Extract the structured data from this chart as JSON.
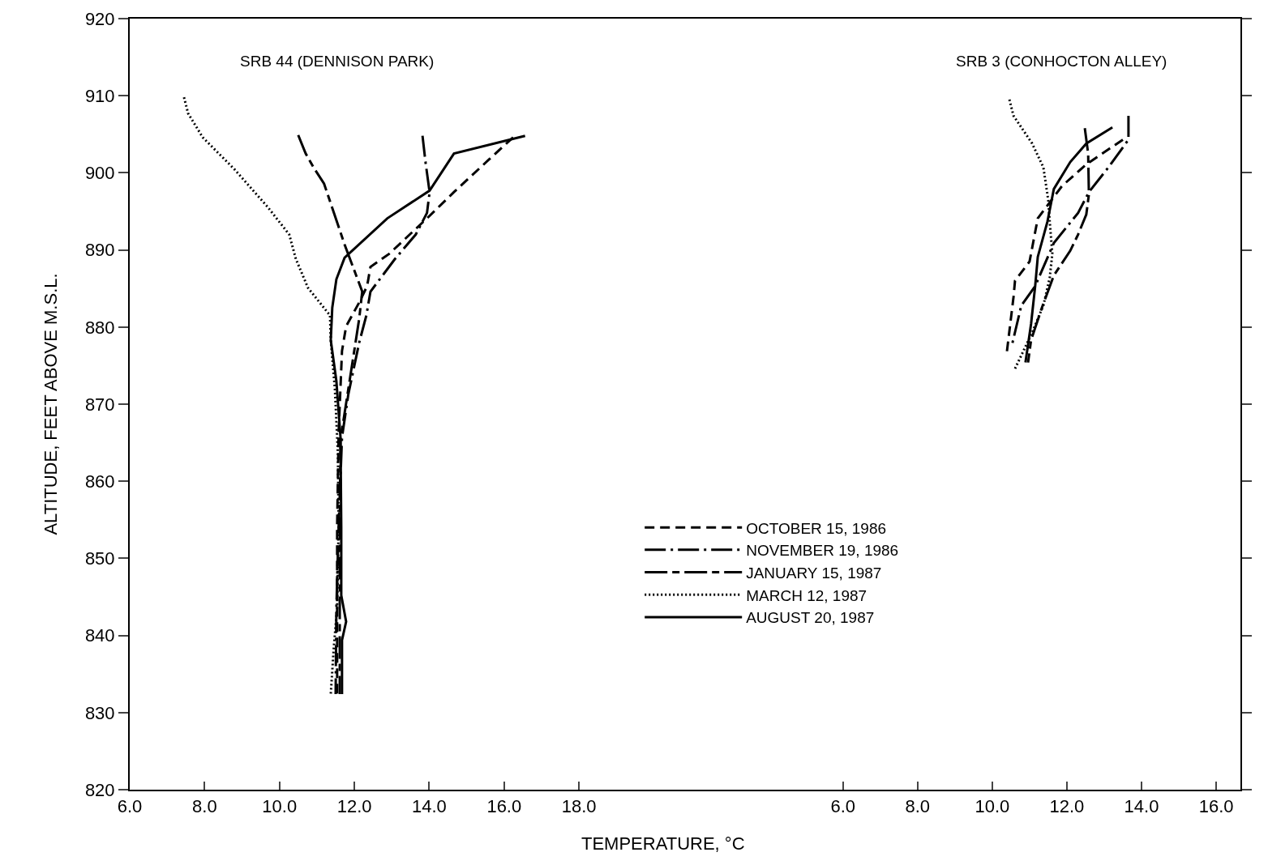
{
  "chart_data": [
    {
      "type": "line",
      "title": "SRB 44 (DENNISON PARK)",
      "xlabel": "TEMPERATURE, °C",
      "ylabel": "ALTITUDE, FEET ABOVE M.S.L.",
      "xlim": [
        6,
        22.02
      ],
      "xticks": [
        {
          "value": 6,
          "label": "6.0"
        },
        {
          "value": 8,
          "label": "8.0"
        },
        {
          "value": 10,
          "label": "10.0"
        },
        {
          "value": 12,
          "label": "12.0"
        },
        {
          "value": 14,
          "label": "14.0"
        },
        {
          "value": 16,
          "label": "16.0"
        },
        {
          "value": 18,
          "label": "18.0"
        }
      ],
      "ylim": [
        820,
        920
      ],
      "yticks": [
        820,
        830,
        840,
        850,
        860,
        870,
        880,
        890,
        900,
        910,
        920
      ],
      "legend": "bottom right",
      "grid": false,
      "marker": "none",
      "series": [
        {
          "name": "OCTOBER 15, 1986",
          "color": "#000000",
          "line_style": "dashed",
          "x": [
            16.24,
            15.59,
            14.66,
            13.94,
            12.93,
            12.43,
            12.34,
            12.13,
            11.78,
            11.67,
            11.58,
            11.54,
            11.54,
            11.54
          ],
          "values": [
            904.6,
            901.7,
            897.5,
            894.1,
            889.5,
            887.8,
            885.3,
            883.2,
            880.1,
            876.9,
            866.4,
            854.1,
            843.6,
            832.4
          ]
        },
        {
          "name": "NOVEMBER 19, 1986",
          "color": "#000000",
          "line_style": "dashdot",
          "x": [
            13.82,
            13.9,
            14.01,
            13.94,
            13.64,
            13.08,
            12.43,
            12.32,
            12.13,
            11.84,
            11.67,
            11.58,
            11.52,
            11.5
          ],
          "values": [
            904.8,
            901.4,
            897.5,
            894.8,
            892.0,
            888.8,
            884.6,
            881.5,
            878.0,
            871.3,
            865.7,
            854.1,
            843.6,
            832.4
          ]
        },
        {
          "name": "JANUARY 15, 1987",
          "color": "#000000",
          "line_style": "longdashdot",
          "x": [
            10.5,
            10.7,
            10.91,
            11.19,
            11.74,
            12.21,
            12.13,
            11.63,
            11.61,
            11.61,
            11.61
          ],
          "values": [
            904.9,
            902.5,
            900.7,
            898.6,
            890.7,
            884.6,
            881.1,
            865.4,
            854.1,
            843.6,
            832.4
          ]
        },
        {
          "name": "MARCH 12, 1987",
          "color": "#000000",
          "line_style": "dotted",
          "x": [
            7.45,
            7.56,
            7.95,
            8.81,
            9.68,
            10.26,
            10.44,
            10.76,
            11.35,
            11.37,
            11.48,
            11.56,
            11.58,
            11.54,
            11.45,
            11.37
          ],
          "values": [
            909.8,
            907.7,
            904.6,
            900.4,
            895.6,
            892.0,
            888.8,
            885.1,
            881.5,
            878.3,
            872.0,
            863.6,
            854.1,
            843.6,
            838.4,
            832.4
          ]
        },
        {
          "name": "AUGUST 20, 1987",
          "color": "#000000",
          "line_style": "solid",
          "x": [
            16.56,
            14.66,
            14.01,
            12.88,
            11.74,
            11.52,
            11.41,
            11.37,
            11.52,
            11.63,
            11.65,
            11.65,
            11.78,
            11.67,
            11.67
          ],
          "values": [
            904.8,
            902.5,
            897.7,
            894.1,
            889.0,
            886.2,
            882.5,
            878.3,
            873.0,
            865.7,
            854.1,
            845.2,
            841.8,
            839.4,
            832.4
          ]
        }
      ]
    },
    {
      "type": "line",
      "title": "SRB 3 (CONHOCTON ALLEY)",
      "xlim": [
        2.96,
        16.65
      ],
      "xticks": [
        {
          "value": 6,
          "label": "6.0"
        },
        {
          "value": 8,
          "label": "8.0"
        },
        {
          "value": 10,
          "label": "10.0"
        },
        {
          "value": 12,
          "label": "12.0"
        },
        {
          "value": 14,
          "label": "14.0"
        },
        {
          "value": 16,
          "label": "16.0"
        }
      ],
      "ylim": [
        820,
        920
      ],
      "yticks": [
        {
          "value": 820,
          "label": null
        },
        {
          "value": 830,
          "label": null
        },
        {
          "value": 840,
          "label": null
        },
        {
          "value": 850,
          "label": null
        },
        {
          "value": 860,
          "label": null
        },
        {
          "value": 870,
          "label": null
        },
        {
          "value": 880,
          "label": null
        },
        {
          "value": 890,
          "label": null
        },
        {
          "value": 900,
          "label": null
        },
        {
          "value": 910,
          "label": null
        },
        {
          "value": 920,
          "label": null
        }
      ],
      "tick_labels": "x",
      "grid": false,
      "marker": "none",
      "series": [
        {
          "color": "#000000",
          "line_style": "dashed",
          "x": [
            13.5,
            12.52,
            11.87,
            11.22,
            11.0,
            10.61,
            10.57,
            10.39
          ],
          "values": [
            904.3,
            901.1,
            898.3,
            894.1,
            888.5,
            886.0,
            883.9,
            876.7
          ]
        },
        {
          "color": "#000000",
          "line_style": "dashdot",
          "x": [
            13.65,
            13.65,
            13.11,
            12.59,
            12.3,
            11.65,
            11.15,
            10.78,
            10.52
          ],
          "values": [
            907.4,
            904.3,
            900.7,
            897.5,
            894.8,
            890.9,
            885.3,
            882.8,
            877.5
          ]
        },
        {
          "color": "#000000",
          "line_style": "longdashdot",
          "x": [
            12.48,
            12.57,
            12.59,
            12.52,
            12.3,
            12.09,
            11.65,
            11.33,
            11.04,
            10.96
          ],
          "values": [
            905.8,
            902.5,
            897.2,
            894.6,
            892.0,
            889.9,
            886.7,
            882.5,
            878.3,
            875.4
          ]
        },
        {
          "color": "#000000",
          "line_style": "dotted",
          "x": [
            10.46,
            10.57,
            11.07,
            11.37,
            11.5,
            11.54,
            11.61,
            11.54,
            11.37,
            11.07,
            10.61
          ],
          "values": [
            909.5,
            907.4,
            903.8,
            900.7,
            896.5,
            893.7,
            889.5,
            886.4,
            882.8,
            879.3,
            874.6
          ]
        },
        {
          "color": "#000000",
          "line_style": "solid",
          "x": [
            13.22,
            12.52,
            12.09,
            11.65,
            11.48,
            11.22,
            11.15,
            11.04,
            10.89
          ],
          "values": [
            905.9,
            903.8,
            901.4,
            897.9,
            893.7,
            889.1,
            885.3,
            880.4,
            875.4
          ]
        }
      ]
    }
  ]
}
